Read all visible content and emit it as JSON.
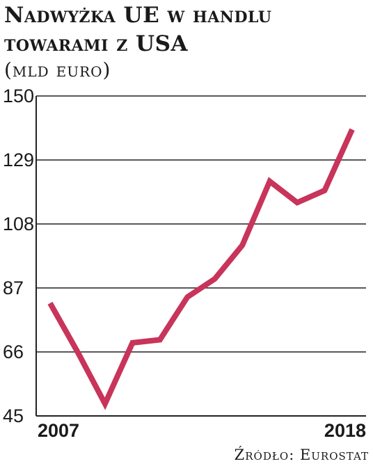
{
  "header": {
    "title": "Nadwyżka UE w handlu towarami z USA",
    "subtitle": "(mld euro)"
  },
  "footer": {
    "source": "Źródło: Eurostat"
  },
  "colors": {
    "line": "#c8345a",
    "grid": "#222222",
    "text": "#1a1a1a"
  },
  "chart_data": {
    "type": "line",
    "title": "Nadwyżka UE w handlu towarami z USA",
    "subtitle": "(mld euro)",
    "xlabel": "",
    "ylabel": "",
    "x": [
      2007,
      2008,
      2009,
      2010,
      2011,
      2012,
      2013,
      2014,
      2015,
      2016,
      2017,
      2018
    ],
    "x_tick_labels": [
      "2007",
      "2018"
    ],
    "y_ticks": [
      45,
      66,
      87,
      108,
      129,
      150
    ],
    "ylim": [
      45,
      150
    ],
    "grid": true,
    "series": [
      {
        "values": [
          82,
          66,
          49,
          69,
          70,
          84,
          90,
          101,
          122,
          115,
          119,
          139
        ]
      }
    ]
  }
}
